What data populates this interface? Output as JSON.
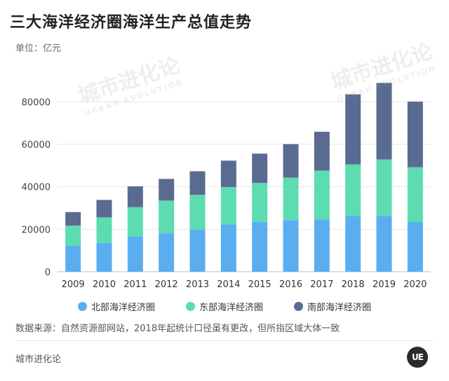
{
  "header": {
    "title": "三大海洋经济圈海洋生产总值走势",
    "unit": "单位：亿元"
  },
  "chart_data": {
    "type": "bar",
    "stacked": true,
    "categories": [
      "2009",
      "2010",
      "2011",
      "2012",
      "2013",
      "2014",
      "2015",
      "2016",
      "2017",
      "2018",
      "2019",
      "2020"
    ],
    "series": [
      {
        "name": "北部海洋经济圈",
        "color": "#5aaef0",
        "values": [
          12300,
          13500,
          16600,
          18100,
          19800,
          22300,
          23500,
          24300,
          24600,
          26200,
          26300,
          23400
        ]
      },
      {
        "name": "东部海洋经济圈",
        "color": "#5cdcb0",
        "values": [
          9400,
          12100,
          13800,
          15400,
          16400,
          17600,
          18300,
          20000,
          23000,
          24300,
          26600,
          25800
        ]
      },
      {
        "name": "南部海洋经济圈",
        "color": "#5a6b92",
        "values": [
          6400,
          8200,
          9800,
          10200,
          11100,
          12400,
          13800,
          15800,
          18300,
          33000,
          36000,
          30900
        ]
      }
    ],
    "ylim": [
      0,
      90000
    ],
    "yticks": [
      0,
      20000,
      40000,
      60000,
      80000
    ],
    "grid": true,
    "legend_position": "bottom"
  },
  "footer": {
    "source": "数据来源：自然资源部网站，2018年起统计口径虽有更改，但所指区域大体一致",
    "brand": "城市进化论",
    "logo_text": "UE"
  },
  "watermark": {
    "main": "城市进化论",
    "sub": "URBAN EVOLUTION"
  }
}
